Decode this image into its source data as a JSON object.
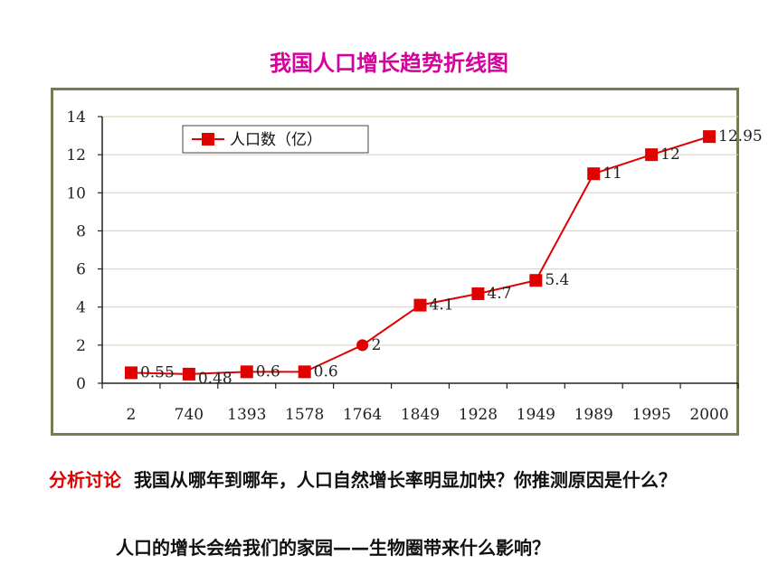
{
  "title": "我国人口增长趋势折线图",
  "chart_data": {
    "type": "line",
    "categories": [
      "2",
      "740",
      "1393",
      "1578",
      "1764",
      "1849",
      "1928",
      "1949",
      "1989",
      "1995",
      "2000"
    ],
    "series": [
      {
        "name": "人口数（亿）",
        "values": [
          0.55,
          0.48,
          0.6,
          0.6,
          2,
          4.1,
          4.7,
          5.4,
          11,
          12,
          12.95
        ],
        "labels": [
          "0.55",
          "0.48",
          "0.6",
          "0.6",
          "2",
          "4.1",
          "4.7",
          "5.4",
          "11",
          "12",
          "12.95"
        ],
        "color": "#e00000"
      }
    ],
    "yticks": [
      "0",
      "2",
      "4",
      "6",
      "8",
      "10",
      "12",
      "14"
    ],
    "ylim": [
      0,
      14
    ],
    "grid": "horizontal",
    "legend": "top-left"
  },
  "discussion": {
    "label": "分析讨论",
    "question1": "我国从哪年到哪年，人口自然增长率明显加快？你推测原因是什么？",
    "question2": "人口的增长会给我们的家园——生物圈带来什么影响？"
  }
}
